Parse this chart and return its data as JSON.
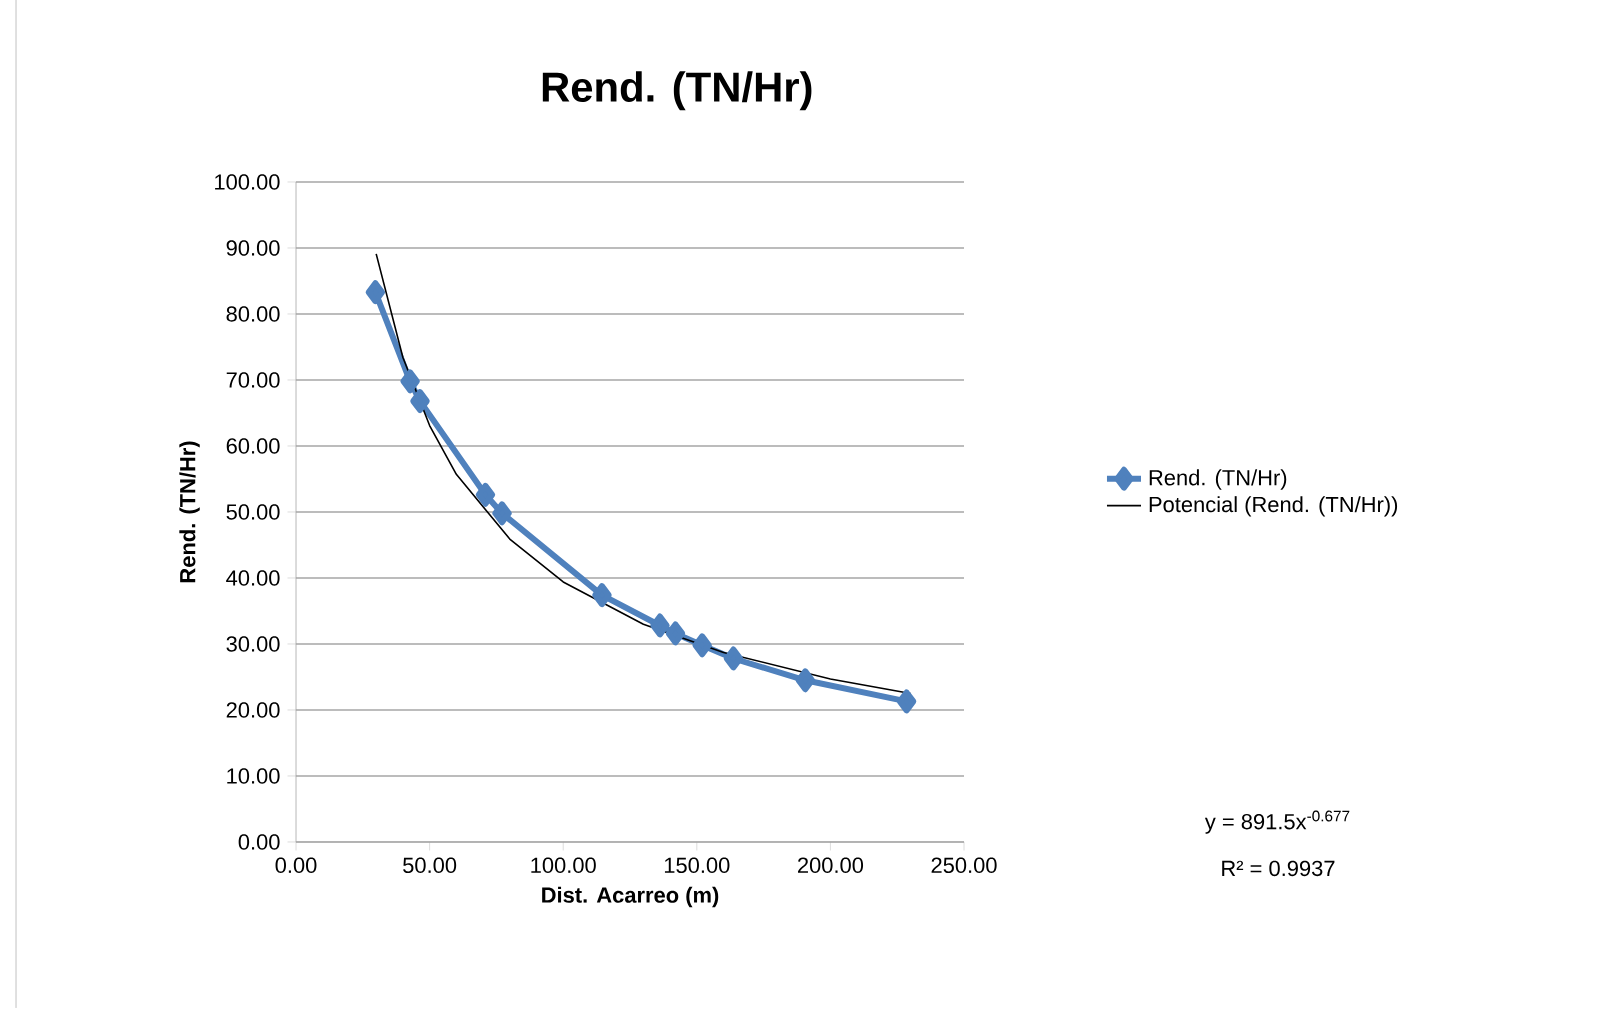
{
  "chart_data": {
    "type": "line",
    "title": "Rend. (TN/Hr)",
    "xlabel": "Dist. Acarreo (m)",
    "ylabel": "Rend. (TN/Hr)",
    "xlim": [
      0,
      250
    ],
    "ylim": [
      0,
      100
    ],
    "xticks": [
      {
        "value": 0,
        "label": "0.00"
      },
      {
        "value": 50,
        "label": "50.00"
      },
      {
        "value": 100,
        "label": "100.00"
      },
      {
        "value": 150,
        "label": "150.00"
      },
      {
        "value": 200,
        "label": "200.00"
      },
      {
        "value": 250,
        "label": "250.00"
      }
    ],
    "yticks": [
      {
        "value": 0,
        "label": "0.00"
      },
      {
        "value": 10,
        "label": "10.00"
      },
      {
        "value": 20,
        "label": "20.00"
      },
      {
        "value": 30,
        "label": "30.00"
      },
      {
        "value": 40,
        "label": "40.00"
      },
      {
        "value": 50,
        "label": "50.00"
      },
      {
        "value": 60,
        "label": "60.00"
      },
      {
        "value": 70,
        "label": "70.00"
      },
      {
        "value": 80,
        "label": "80.00"
      },
      {
        "value": 90,
        "label": "90.00"
      },
      {
        "value": 100,
        "label": "100.00"
      }
    ],
    "grid": "y",
    "legend": "right",
    "series": [
      {
        "name": "Rend. (TN/Hr)",
        "color": "#4f81bd",
        "marker": "diamond",
        "x": [
          29.7,
          42.7,
          46.4,
          70.9,
          77.1,
          114.5,
          136.2,
          142,
          152,
          163.7,
          190.6,
          228.5
        ],
        "values": [
          83.3,
          69.8,
          66.8,
          52.6,
          49.8,
          37.4,
          32.8,
          31.6,
          29.8,
          27.8,
          24.5,
          21.3
        ]
      },
      {
        "name": "Potencial (Rend. (TN/Hr))",
        "color": "#000000",
        "marker": "none",
        "x": [
          30,
          40,
          50,
          60,
          80,
          100,
          130,
          160,
          200,
          230
        ],
        "values": [
          89.1,
          73.4,
          63.1,
          55.7,
          45.9,
          39.4,
          33.0,
          28.7,
          24.7,
          22.5
        ]
      }
    ],
    "annotations": [
      "y = 891.5x$^{-0.677}$",
      "R² = 0.9937"
    ]
  }
}
